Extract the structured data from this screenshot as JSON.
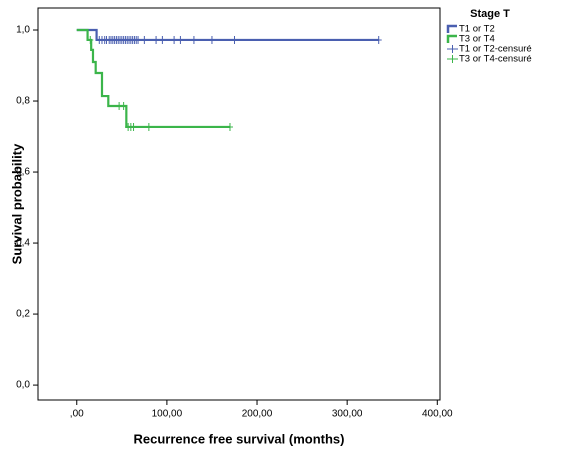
{
  "chart_data": {
    "type": "kaplan-meier",
    "x_label": "Recurrence free survival (months)",
    "y_label": "Survival probability",
    "legend_title": "Stage T",
    "legend_position": "right",
    "xlim": [
      -43,
      403
    ],
    "ylim": [
      -0.042,
      1.062
    ],
    "xticks": [
      {
        "value": 0,
        "label": ",00"
      },
      {
        "value": 100,
        "label": "100,00"
      },
      {
        "value": 200,
        "label": "200,00"
      },
      {
        "value": 300,
        "label": "300,00"
      },
      {
        "value": 400,
        "label": "400,00"
      }
    ],
    "yticks": [
      {
        "value": 0,
        "label": "0,0"
      },
      {
        "value": 0.2,
        "label": "0,2"
      },
      {
        "value": 0.4,
        "label": "0,4"
      },
      {
        "value": 0.6,
        "label": "0,6"
      },
      {
        "value": 0.8,
        "label": "0,8"
      },
      {
        "value": 1,
        "label": "1,0"
      }
    ],
    "series": [
      {
        "name": "T1 or T2",
        "color": "#4a5fb0",
        "x": [
          0,
          22,
          22,
          335
        ],
        "values": [
          1,
          1,
          0.972,
          0.972
        ]
      },
      {
        "name": "T3 or T4",
        "color": "#3bb54a",
        "x": [
          0,
          12,
          12,
          16,
          16,
          18,
          18,
          21,
          21,
          28,
          28,
          35,
          35,
          55,
          55,
          170
        ],
        "values": [
          1,
          1,
          0.972,
          0.972,
          0.944,
          0.944,
          0.91,
          0.91,
          0.879,
          0.879,
          0.814,
          0.814,
          0.786,
          0.786,
          0.727,
          0.727
        ]
      }
    ],
    "censored": [
      {
        "name": "T1 or T2-censuré",
        "color": "#4a5fb0",
        "x": [
          25,
          28,
          31,
          33,
          36,
          38,
          40,
          42,
          44,
          46,
          48,
          50,
          52,
          54,
          56,
          58,
          60,
          62,
          64,
          66,
          68,
          75,
          88,
          95,
          108,
          115,
          130,
          150,
          175,
          335
        ],
        "values": [
          0.972,
          0.972,
          0.972,
          0.972,
          0.972,
          0.972,
          0.972,
          0.972,
          0.972,
          0.972,
          0.972,
          0.972,
          0.972,
          0.972,
          0.972,
          0.972,
          0.972,
          0.972,
          0.972,
          0.972,
          0.972,
          0.972,
          0.972,
          0.972,
          0.972,
          0.972,
          0.972,
          0.972,
          0.972,
          0.972
        ]
      },
      {
        "name": "T3 or T4-censuré",
        "color": "#3bb54a",
        "x": [
          15,
          47,
          52,
          57,
          60,
          63,
          80,
          170
        ],
        "values": [
          0.972,
          0.786,
          0.786,
          0.727,
          0.727,
          0.727,
          0.727,
          0.727
        ]
      }
    ]
  }
}
